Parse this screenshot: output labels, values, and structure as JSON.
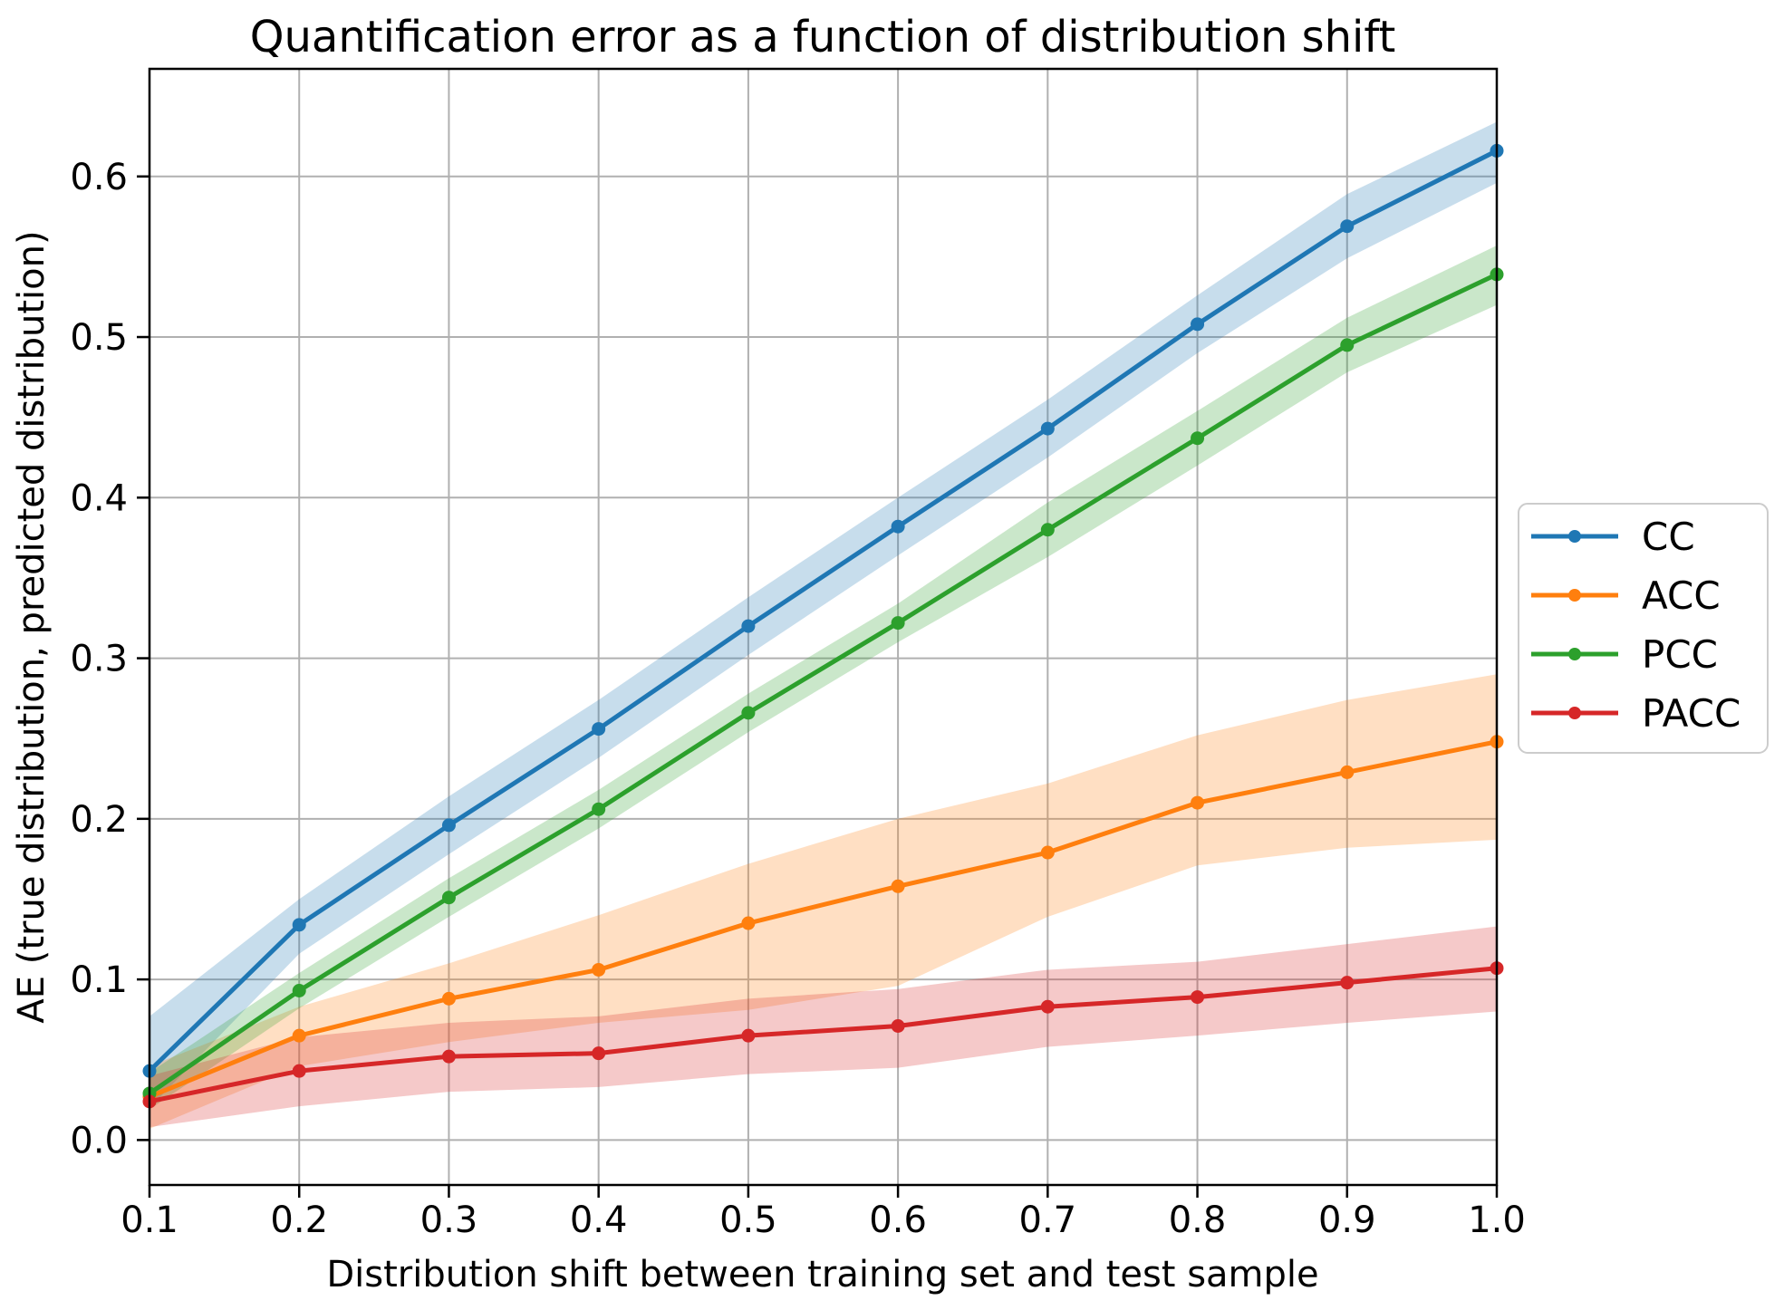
{
  "chart_data": {
    "type": "line",
    "title": "Quantification error as a function of distribution shift",
    "xlabel": "Distribution shift between training set and test sample",
    "ylabel": "AE (true distribution, predicted distribution)",
    "x": [
      0.1,
      0.2,
      0.3,
      0.4,
      0.5,
      0.6,
      0.7,
      0.8,
      0.9,
      1.0
    ],
    "xlim": [
      0.1,
      1.0
    ],
    "ylim": [
      -0.028,
      0.667
    ],
    "xticks": [
      "0.1",
      "0.2",
      "0.3",
      "0.4",
      "0.5",
      "0.6",
      "0.7",
      "0.8",
      "0.9",
      "1.0"
    ],
    "yticks": [
      "0.0",
      "0.1",
      "0.2",
      "0.3",
      "0.4",
      "0.5",
      "0.6"
    ],
    "grid": true,
    "legend_position": "center-right-outside",
    "grid_color": "#b0b0b0",
    "band_alpha": 0.25,
    "series": [
      {
        "name": "CC",
        "color": "#1f77b4",
        "values": [
          0.043,
          0.134,
          0.196,
          0.256,
          0.32,
          0.382,
          0.443,
          0.508,
          0.569,
          0.616
        ],
        "band_lower": [
          0.02,
          0.116,
          0.178,
          0.238,
          0.302,
          0.364,
          0.425,
          0.49,
          0.549,
          0.596
        ],
        "band_upper": [
          0.077,
          0.15,
          0.214,
          0.274,
          0.338,
          0.4,
          0.461,
          0.526,
          0.589,
          0.634
        ]
      },
      {
        "name": "ACC",
        "color": "#ff7f0e",
        "values": [
          0.027,
          0.065,
          0.088,
          0.106,
          0.135,
          0.158,
          0.179,
          0.21,
          0.229,
          0.248
        ],
        "band_lower": [
          0.007,
          0.046,
          0.061,
          0.073,
          0.081,
          0.096,
          0.139,
          0.171,
          0.182,
          0.187
        ],
        "band_upper": [
          0.046,
          0.083,
          0.11,
          0.14,
          0.172,
          0.2,
          0.222,
          0.252,
          0.274,
          0.29
        ]
      },
      {
        "name": "PCC",
        "color": "#2ca02c",
        "values": [
          0.029,
          0.093,
          0.151,
          0.206,
          0.266,
          0.322,
          0.38,
          0.437,
          0.495,
          0.539
        ],
        "band_lower": [
          0.019,
          0.082,
          0.139,
          0.194,
          0.254,
          0.31,
          0.363,
          0.42,
          0.478,
          0.52
        ],
        "band_upper": [
          0.042,
          0.104,
          0.163,
          0.218,
          0.278,
          0.334,
          0.397,
          0.454,
          0.512,
          0.557
        ]
      },
      {
        "name": "PACC",
        "color": "#d62728",
        "values": [
          0.024,
          0.043,
          0.052,
          0.054,
          0.065,
          0.071,
          0.083,
          0.089,
          0.098,
          0.107
        ],
        "band_lower": [
          0.008,
          0.021,
          0.03,
          0.033,
          0.041,
          0.045,
          0.058,
          0.065,
          0.073,
          0.08
        ],
        "band_upper": [
          0.04,
          0.064,
          0.073,
          0.077,
          0.088,
          0.094,
          0.106,
          0.111,
          0.122,
          0.133
        ]
      }
    ]
  }
}
